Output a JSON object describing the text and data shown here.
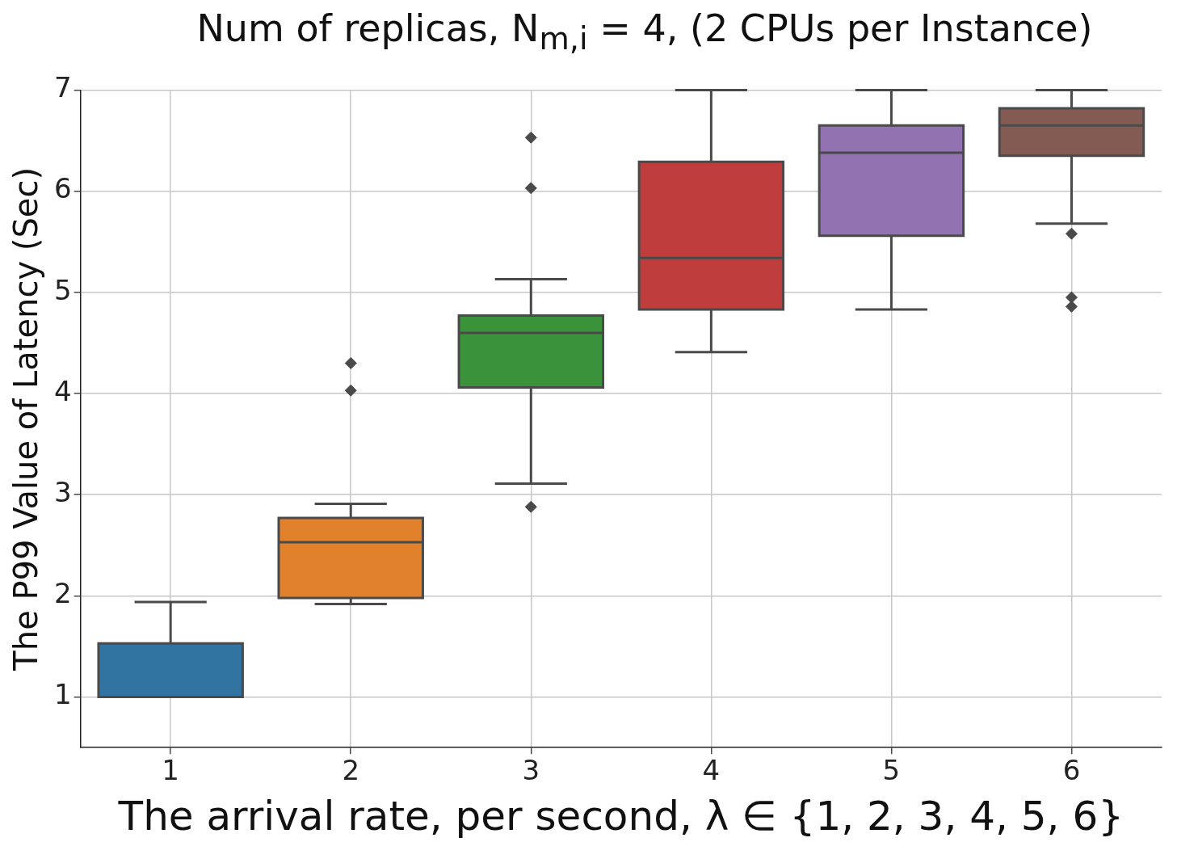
{
  "chart_data": {
    "type": "box",
    "title": "Num of replicas, N$_{m,i}$ = 4, (2 CPUs per Instance)",
    "xlabel": "The arrival rate, per second, λ ∈ {1, 2, 3, 4, 5, 6}",
    "ylabel": "The P99 Value of Latency (Sec)",
    "categories": [
      "1",
      "2",
      "3",
      "4",
      "5",
      "6"
    ],
    "colors": [
      "#3274a1",
      "#e1812c",
      "#3a923a",
      "#c03d3e",
      "#9372b2",
      "#845b53"
    ],
    "boxes": [
      {
        "low": 1.0,
        "q1": 1.0,
        "median": 1.0,
        "q3": 1.53,
        "high": 1.94
      },
      {
        "low": 1.92,
        "q1": 1.98,
        "median": 2.53,
        "q3": 2.77,
        "high": 2.91,
        "outliers": [
          4.3,
          4.03
        ]
      },
      {
        "low": 3.11,
        "q1": 4.06,
        "median": 4.6,
        "q3": 4.77,
        "high": 5.13,
        "outliers": [
          6.53,
          6.03,
          2.88
        ]
      },
      {
        "low": 4.41,
        "q1": 4.83,
        "median": 5.34,
        "q3": 6.29,
        "high": 7.0
      },
      {
        "low": 4.83,
        "q1": 5.56,
        "median": 6.38,
        "q3": 6.65,
        "high": 7.0
      },
      {
        "low": 5.68,
        "q1": 6.35,
        "median": 6.65,
        "q3": 6.82,
        "high": 7.0,
        "outliers": [
          5.58,
          4.95,
          4.86
        ]
      }
    ],
    "ylim": [
      0.5,
      7
    ],
    "yticks": [
      1,
      2,
      3,
      4,
      5,
      6,
      7
    ],
    "grid": true,
    "legend": false,
    "marker": "diamond"
  }
}
